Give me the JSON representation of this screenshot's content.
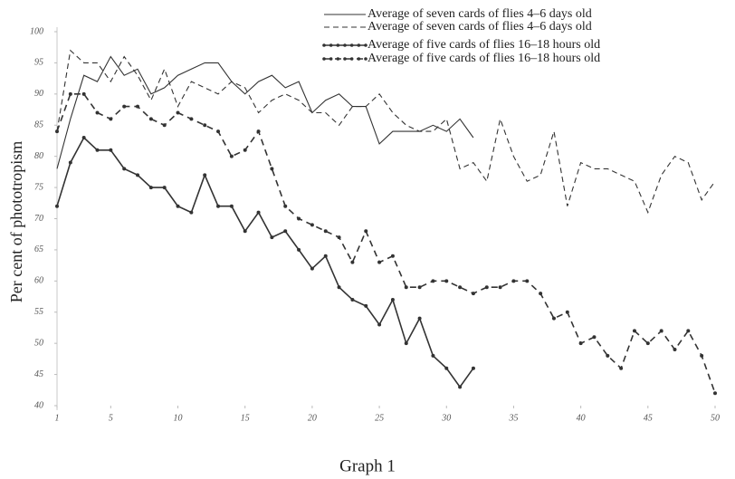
{
  "chart_data": {
    "type": "line",
    "title": "Graph 1",
    "y_label": "Per cent of phototropism",
    "xlim": [
      1,
      50
    ],
    "xticks": [
      1,
      5,
      10,
      15,
      20,
      25,
      30,
      35,
      40,
      45,
      50
    ],
    "ylim": [
      40,
      100
    ],
    "yticks": [
      40,
      45,
      50,
      55,
      60,
      65,
      70,
      75,
      80,
      85,
      90,
      95,
      100
    ],
    "series": [
      {
        "name": "Average of seven cards of flies 4–6 days old",
        "color": "#333333",
        "style": "solid",
        "x": [
          1,
          2,
          3,
          4,
          5,
          6,
          7,
          8,
          9,
          10,
          11,
          12,
          13,
          14,
          15,
          16,
          17,
          18,
          19,
          20,
          21,
          22,
          23,
          24,
          25,
          26,
          27,
          28,
          29,
          30,
          31,
          32
        ],
        "values": [
          78,
          86,
          93,
          92,
          96,
          93,
          94,
          90,
          91,
          93,
          94,
          95,
          95,
          92,
          90,
          92,
          93,
          91,
          92,
          87,
          89,
          90,
          88,
          88,
          82,
          84,
          84,
          84,
          85,
          84,
          86,
          83
        ]
      },
      {
        "name": "Average of seven cards of flies 4–6 days old",
        "color": "#333333",
        "style": "dashed",
        "x": [
          1,
          2,
          3,
          4,
          5,
          6,
          7,
          8,
          9,
          10,
          11,
          12,
          13,
          14,
          15,
          16,
          17,
          18,
          19,
          20,
          21,
          22,
          23,
          24,
          25,
          26,
          27,
          28,
          29,
          30,
          31,
          32,
          33,
          34,
          35,
          36,
          37,
          38,
          39,
          40,
          41,
          42,
          43,
          44,
          45,
          46,
          47,
          48,
          49,
          50
        ],
        "values": [
          84,
          97,
          95,
          95,
          92,
          96,
          93,
          89,
          94,
          88,
          92,
          91,
          90,
          92,
          91,
          87,
          89,
          90,
          89,
          87,
          87,
          85,
          88,
          88,
          90,
          87,
          85,
          84,
          84,
          86,
          78,
          79,
          76,
          86,
          80,
          76,
          77,
          84,
          72,
          79,
          78,
          78,
          77,
          76,
          71,
          77,
          80,
          79,
          73,
          76
        ]
      },
      {
        "name": "Average of five cards of flies 16–18 hours old",
        "color": "#333333",
        "style": "dot-solid",
        "x": [
          1,
          2,
          3,
          4,
          5,
          6,
          7,
          8,
          9,
          10,
          11,
          12,
          13,
          14,
          15,
          16,
          17,
          18,
          19,
          20,
          21,
          22,
          23,
          24,
          25,
          26,
          27,
          28,
          29,
          30,
          31,
          32
        ],
        "values": [
          72,
          79,
          83,
          81,
          81,
          78,
          77,
          75,
          75,
          72,
          71,
          77,
          72,
          72,
          68,
          71,
          67,
          68,
          65,
          62,
          64,
          59,
          57,
          56,
          53,
          57,
          50,
          54,
          48,
          46,
          43,
          46
        ]
      },
      {
        "name": "Average of five cards of flies 16–18 hours old",
        "color": "#333333",
        "style": "dot-dashed",
        "x": [
          1,
          2,
          3,
          4,
          5,
          6,
          7,
          8,
          9,
          10,
          11,
          12,
          13,
          14,
          15,
          16,
          17,
          18,
          19,
          20,
          21,
          22,
          23,
          24,
          25,
          26,
          27,
          28,
          29,
          30,
          31,
          32,
          33,
          34,
          35,
          36,
          37,
          38,
          39,
          40,
          41,
          42,
          43,
          44,
          45,
          46,
          47,
          48,
          49,
          50
        ],
        "values": [
          84,
          90,
          90,
          87,
          86,
          88,
          88,
          86,
          85,
          87,
          86,
          85,
          84,
          80,
          81,
          84,
          78,
          72,
          70,
          69,
          68,
          67,
          63,
          68,
          63,
          64,
          59,
          59,
          60,
          60,
          59,
          58,
          59,
          59,
          60,
          60,
          58,
          54,
          55,
          50,
          51,
          48,
          46,
          52,
          50,
          52,
          49,
          52,
          48,
          42
        ]
      }
    ]
  }
}
